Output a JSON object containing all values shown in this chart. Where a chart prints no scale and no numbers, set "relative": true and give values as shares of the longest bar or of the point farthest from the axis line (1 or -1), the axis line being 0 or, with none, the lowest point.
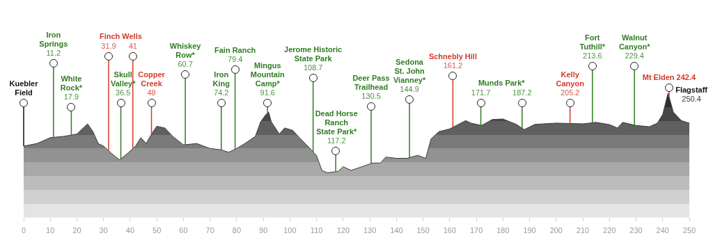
{
  "chart_data": {
    "type": "area",
    "relative": true,
    "color": "#3a3a3a",
    "x": [
      0,
      5,
      10,
      15,
      20,
      22,
      24,
      26,
      28,
      30,
      33,
      36,
      39,
      42,
      44,
      46,
      48,
      50,
      53,
      56,
      60,
      65,
      70,
      74,
      77,
      80,
      83,
      87,
      89,
      91,
      92,
      93,
      96,
      98,
      101,
      104,
      108,
      110,
      112,
      114,
      118,
      120,
      123,
      127,
      131,
      134,
      136,
      140,
      144,
      148,
      151,
      153,
      156,
      160,
      166,
      168,
      172,
      176,
      180,
      185,
      188,
      192,
      200,
      210,
      215,
      220,
      223,
      225,
      230,
      235,
      238,
      240,
      242,
      244,
      247,
      250
    ],
    "values": [
      0.575,
      0.596,
      0.643,
      0.653,
      0.672,
      0.713,
      0.754,
      0.692,
      0.596,
      0.575,
      0.516,
      0.464,
      0.516,
      0.575,
      0.643,
      0.596,
      0.672,
      0.735,
      0.721,
      0.653,
      0.585,
      0.596,
      0.556,
      0.546,
      0.526,
      0.556,
      0.595,
      0.653,
      0.77,
      0.829,
      0.848,
      0.77,
      0.672,
      0.721,
      0.702,
      0.633,
      0.546,
      0.497,
      0.38,
      0.361,
      0.371,
      0.409,
      0.38,
      0.409,
      0.439,
      0.439,
      0.487,
      0.477,
      0.477,
      0.501,
      0.477,
      0.633,
      0.692,
      0.713,
      0.78,
      0.76,
      0.741,
      0.789,
      0.793,
      0.75,
      0.708,
      0.75,
      0.76,
      0.754,
      0.766,
      0.748,
      0.721,
      0.766,
      0.741,
      0.731,
      0.76,
      0.829,
      1,
      0.848,
      0.78,
      0.76
    ],
    "xlim": [
      0,
      250
    ],
    "xticks": [
      0,
      10,
      20,
      30,
      40,
      50,
      60,
      70,
      80,
      90,
      100,
      110,
      120,
      130,
      140,
      150,
      160,
      170,
      180,
      190,
      200,
      210,
      220,
      230,
      240,
      250
    ],
    "grid": false,
    "ref_lines": [
      {
        "axis": "x",
        "value": 0,
        "label": "Kuebler\nField",
        "color": "#111111"
      },
      {
        "axis": "x",
        "value": 11.2,
        "label": "Iron\nSprings\n11.2",
        "color": "#2e7d1f"
      },
      {
        "axis": "x",
        "value": 17.9,
        "label": "White\nRock*\n17.9",
        "color": "#2e7d1f"
      },
      {
        "axis": "x",
        "value": 31.9,
        "label": "31.9",
        "color": "#d23a2a"
      },
      {
        "axis": "x",
        "value": 36.5,
        "label": "Skull\nValley*\n36.5",
        "color": "#2e7d1f"
      },
      {
        "axis": "x",
        "value": 41,
        "label": "41",
        "color": "#d23a2a"
      },
      {
        "axis": "x",
        "value": 48,
        "label": "Copper\nCreek\n48",
        "color": "#d23a2a"
      },
      {
        "axis": "x",
        "value": 60.7,
        "label": "Whiskey\nRow*\n60.7",
        "color": "#2e7d1f"
      },
      {
        "axis": "x",
        "value": 74.2,
        "label": "Iron\nKing\n74.2",
        "color": "#2e7d1f"
      },
      {
        "axis": "x",
        "value": 79.4,
        "label": "Fain Ranch\n79.4",
        "color": "#2e7d1f"
      },
      {
        "axis": "x",
        "value": 91.6,
        "label": "Mingus\nMountain\nCamp*\n91.6",
        "color": "#2e7d1f"
      },
      {
        "axis": "x",
        "value": 108.7,
        "label": "Jerome Historic\nState Park\n108.7",
        "color": "#2e7d1f"
      },
      {
        "axis": "x",
        "value": 117.2,
        "label": "Dead Horse\nRanch\nState Park*\n117.2",
        "color": "#2e7d1f"
      },
      {
        "axis": "x",
        "value": 130.5,
        "label": "Deer Pass\nTrailhead\n130.5",
        "color": "#2e7d1f"
      },
      {
        "axis": "x",
        "value": 144.9,
        "label": "Sedona\nSt. John\nVianney*\n144.9",
        "color": "#2e7d1f"
      },
      {
        "axis": "x",
        "value": 161.2,
        "label": "Schnebly Hill\n161.2",
        "color": "#d23a2a"
      },
      {
        "axis": "x",
        "value": 171.7,
        "label": "171.7",
        "color": "#2e7d1f"
      },
      {
        "axis": "x",
        "value": 187.2,
        "label": "187.2",
        "color": "#2e7d1f"
      },
      {
        "axis": "x",
        "value": 205.2,
        "label": "Kelly\nCanyon\n205.2",
        "color": "#d23a2a"
      },
      {
        "axis": "x",
        "value": 213.6,
        "label": "Fort\nTuthill*\n213.6",
        "color": "#2e7d1f"
      },
      {
        "axis": "x",
        "value": 229.4,
        "label": "Walnut\nCanyon*\n229.4",
        "color": "#2e7d1f"
      },
      {
        "axis": "x",
        "value": 242.4,
        "label": "Mt Elden 242.4",
        "color": "#d23a2a"
      }
    ],
    "annotations": [
      "Finch Wells",
      "Munds Park*",
      "Flagstaff\n250.4"
    ]
  }
}
